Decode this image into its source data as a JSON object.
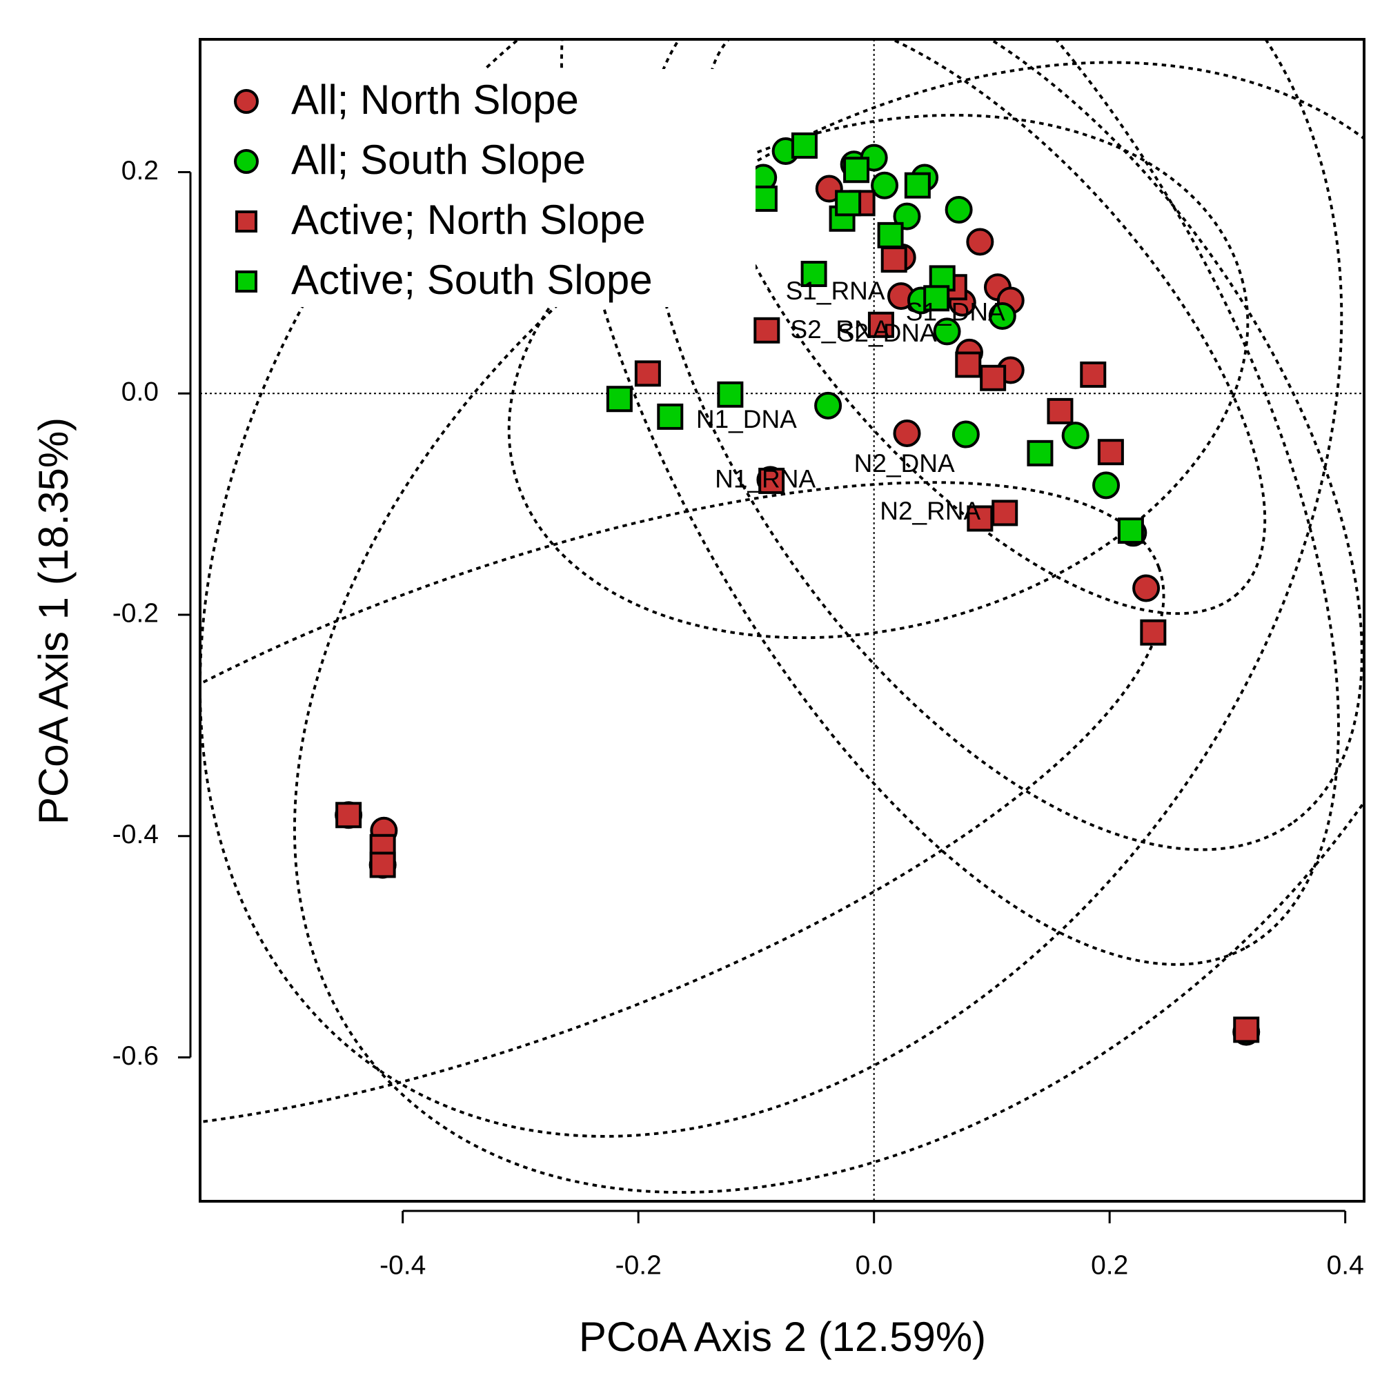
{
  "chart_data": {
    "type": "scatter",
    "xlabel": "PCoA Axis 2 (12.59%)",
    "ylabel": "PCoA Axis 1 (18.35%)",
    "xlim": [
      -0.572,
      0.416
    ],
    "ylim": [
      -0.73,
      0.32
    ],
    "xticks": [
      -0.4,
      -0.2,
      {
        "value": 0,
        "label": "0.0"
      },
      0.2,
      0.4
    ],
    "yticks": [
      -0.6,
      -0.4,
      -0.2,
      {
        "value": 0,
        "label": "0.0"
      },
      0.2
    ],
    "reference_lines": true,
    "legend": "top-left",
    "series": [
      {
        "name": "All; North Slope",
        "shape": "circle",
        "color": "#c83232",
        "x": [
          -0.038,
          0.024,
          0.023,
          0.09,
          0.105,
          0.116,
          0.075,
          0.081,
          0.116,
          0.028,
          -0.088,
          0.231,
          -0.446,
          -0.416,
          -0.417
        ],
        "y": [
          0.185,
          0.123,
          0.088,
          0.137,
          0.096,
          0.084,
          0.082,
          0.037,
          0.021,
          -0.036,
          -0.078,
          -0.176,
          -0.381,
          -0.395,
          -0.426
        ]
      },
      {
        "name": "All; South Slope",
        "shape": "circle",
        "color": "#00cd00",
        "x": [
          -0.094,
          -0.075,
          -0.017,
          0.0,
          0.009,
          0.028,
          0.043,
          0.072,
          0.04,
          0.062,
          0.109,
          -0.039,
          0.078,
          0.171,
          0.197,
          0.22,
          0.316
        ],
        "y": [
          0.195,
          0.219,
          0.207,
          0.213,
          0.188,
          0.16,
          0.195,
          0.166,
          0.084,
          0.056,
          0.07,
          -0.011,
          -0.037,
          -0.038,
          -0.083,
          -0.126,
          -0.577
        ]
      },
      {
        "name": "Active; North Slope",
        "shape": "square",
        "color": "#c83232",
        "x": [
          -0.192,
          -0.091,
          -0.01,
          0.017,
          0.006,
          0.068,
          0.08,
          0.101,
          0.158,
          0.186,
          0.201,
          0.09,
          0.111,
          0.237,
          -0.087,
          -0.446,
          -0.417,
          -0.417,
          0.316
        ],
        "y": [
          0.018,
          0.057,
          0.172,
          0.121,
          0.062,
          0.096,
          0.026,
          0.014,
          -0.016,
          0.017,
          -0.053,
          -0.113,
          -0.108,
          -0.216,
          -0.079,
          -0.381,
          -0.41,
          -0.426,
          -0.575
        ]
      },
      {
        "name": "Active; South Slope",
        "shape": "square",
        "color": "#00cd00",
        "x": [
          -0.059,
          -0.093,
          -0.027,
          -0.022,
          -0.015,
          0.014,
          0.037,
          -0.051,
          0.058,
          0.053,
          -0.216,
          -0.173,
          -0.122,
          0.141,
          0.218
        ],
        "y": [
          0.224,
          0.176,
          0.158,
          0.172,
          0.202,
          0.143,
          0.188,
          0.108,
          0.104,
          0.086,
          -0.005,
          -0.021,
          -0.001,
          -0.054,
          -0.124
        ]
      }
    ],
    "annotations": [
      {
        "text": "S1_RNA",
        "x": -0.075,
        "y": 0.091
      },
      {
        "text": "S2_RNA",
        "x": -0.071,
        "y": 0.056
      },
      {
        "text": "S2_DNA",
        "x": -0.031,
        "y": 0.053
      },
      {
        "text": "S1_DNA",
        "x": 0.027,
        "y": 0.072
      },
      {
        "text": "N1_DNA",
        "x": -0.151,
        "y": -0.025
      },
      {
        "text": "N1_RNA",
        "x": -0.135,
        "y": -0.079
      },
      {
        "text": "N2_DNA",
        "x": -0.017,
        "y": -0.065
      },
      {
        "text": "N2_RNA",
        "x": 0.005,
        "y": -0.108
      }
    ]
  }
}
